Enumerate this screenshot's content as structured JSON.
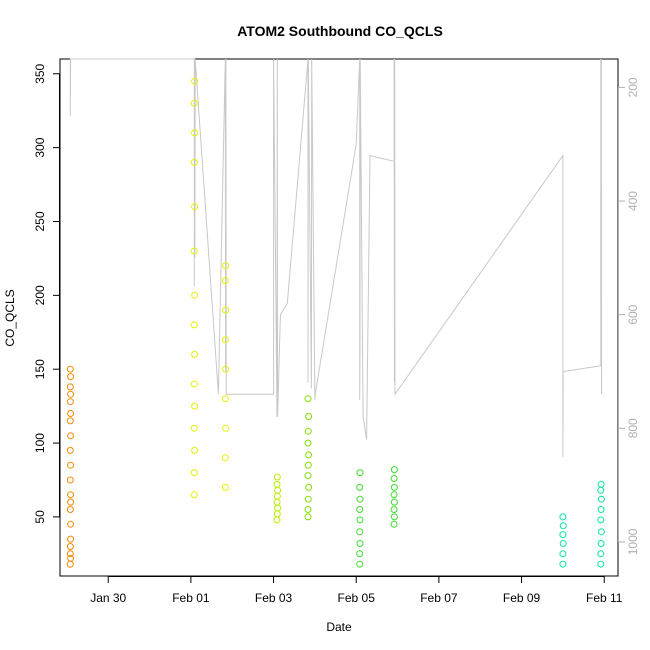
{
  "chart_data": {
    "type": "scatter",
    "title": "ATOM2 Southbound CO_QCLS",
    "xlabel": "Date",
    "ylabel": "CO_QCLS",
    "xlim": [
      "2017-01-28T20:00",
      "2017-02-11T08:00"
    ],
    "ylim": [
      10,
      360
    ],
    "x_ticks": [
      {
        "date": "2017-01-30",
        "label": "Jan 30"
      },
      {
        "date": "2017-02-01",
        "label": "Feb 01"
      },
      {
        "date": "2017-02-03",
        "label": "Feb 03"
      },
      {
        "date": "2017-02-05",
        "label": "Feb 05"
      },
      {
        "date": "2017-02-07",
        "label": "Feb 07"
      },
      {
        "date": "2017-02-09",
        "label": "Feb 09"
      },
      {
        "date": "2017-02-11",
        "label": "Feb 11"
      }
    ],
    "y_ticks": [
      50,
      100,
      150,
      200,
      250,
      300,
      350
    ],
    "y2_ticks": [
      200,
      400,
      600,
      800,
      1000
    ],
    "y2lim": [
      150,
      1060
    ],
    "y2_reversed": true,
    "grid": false,
    "series": [
      {
        "color": "#f58a00",
        "points": [
          [
            "2017-01-29T02:00",
            18
          ],
          [
            "2017-01-29T02:00",
            25
          ],
          [
            "2017-01-29T02:10",
            35
          ],
          [
            "2017-01-29T02:10",
            45
          ],
          [
            "2017-01-29T02:00",
            55
          ],
          [
            "2017-01-29T02:10",
            65
          ],
          [
            "2017-01-29T02:00",
            75
          ],
          [
            "2017-01-29T02:10",
            85
          ],
          [
            "2017-01-29T02:00",
            95
          ],
          [
            "2017-01-29T02:10",
            105
          ],
          [
            "2017-01-29T02:00",
            115
          ],
          [
            "2017-01-29T02:10",
            120
          ],
          [
            "2017-01-29T02:00",
            128
          ],
          [
            "2017-01-29T02:10",
            133
          ],
          [
            "2017-01-29T02:00",
            138
          ],
          [
            "2017-01-29T02:10",
            145
          ],
          [
            "2017-01-29T02:00",
            150
          ],
          [
            "2017-01-29T02:10",
            22
          ],
          [
            "2017-01-29T02:00",
            30
          ],
          [
            "2017-01-29T02:10",
            60
          ]
        ]
      },
      {
        "color": "#e6f000",
        "points": [
          [
            "2017-02-01T02:00",
            65
          ],
          [
            "2017-02-01T02:00",
            80
          ],
          [
            "2017-02-01T02:10",
            95
          ],
          [
            "2017-02-01T02:00",
            110
          ],
          [
            "2017-02-01T02:10",
            125
          ],
          [
            "2017-02-01T02:00",
            140
          ],
          [
            "2017-02-01T02:10",
            160
          ],
          [
            "2017-02-01T02:00",
            180
          ],
          [
            "2017-02-01T02:10",
            200
          ],
          [
            "2017-02-01T02:00",
            230
          ],
          [
            "2017-02-01T02:10",
            260
          ],
          [
            "2017-02-01T02:00",
            290
          ],
          [
            "2017-02-01T02:10",
            310
          ],
          [
            "2017-02-01T02:00",
            330
          ],
          [
            "2017-02-01T02:10",
            345
          ],
          [
            "2017-02-01T20:00",
            70
          ],
          [
            "2017-02-01T20:00",
            90
          ],
          [
            "2017-02-01T20:10",
            110
          ],
          [
            "2017-02-01T20:00",
            130
          ],
          [
            "2017-02-01T20:10",
            150
          ],
          [
            "2017-02-01T20:00",
            170
          ],
          [
            "2017-02-01T20:10",
            190
          ],
          [
            "2017-02-01T20:00",
            210
          ],
          [
            "2017-02-01T20:10",
            220
          ]
        ]
      },
      {
        "color": "#b8ef00",
        "points": [
          [
            "2017-02-03T02:00",
            48
          ],
          [
            "2017-02-03T02:10",
            52
          ],
          [
            "2017-02-03T02:20",
            56
          ],
          [
            "2017-02-03T02:00",
            60
          ],
          [
            "2017-02-03T02:10",
            64
          ],
          [
            "2017-02-03T02:20",
            68
          ],
          [
            "2017-02-03T02:00",
            72
          ],
          [
            "2017-02-03T02:10",
            77
          ]
        ]
      },
      {
        "color": "#7fe000",
        "points": [
          [
            "2017-02-03T20:00",
            50
          ],
          [
            "2017-02-03T20:00",
            55
          ],
          [
            "2017-02-03T20:10",
            62
          ],
          [
            "2017-02-03T20:20",
            70
          ],
          [
            "2017-02-03T20:00",
            78
          ],
          [
            "2017-02-03T20:10",
            85
          ],
          [
            "2017-02-03T20:20",
            92
          ],
          [
            "2017-02-03T20:00",
            100
          ],
          [
            "2017-02-03T20:10",
            108
          ],
          [
            "2017-02-03T20:20",
            118
          ],
          [
            "2017-02-03T20:00",
            130
          ]
        ]
      },
      {
        "color": "#3edc2e",
        "points": [
          [
            "2017-02-05T02:00",
            18
          ],
          [
            "2017-02-05T02:00",
            25
          ],
          [
            "2017-02-05T02:10",
            32
          ],
          [
            "2017-02-05T02:00",
            40
          ],
          [
            "2017-02-05T02:10",
            48
          ],
          [
            "2017-02-05T02:00",
            55
          ],
          [
            "2017-02-05T02:10",
            62
          ],
          [
            "2017-02-05T02:00",
            70
          ],
          [
            "2017-02-05T02:10",
            80
          ],
          [
            "2017-02-05T22:00",
            45
          ],
          [
            "2017-02-05T22:10",
            50
          ],
          [
            "2017-02-05T22:00",
            55
          ],
          [
            "2017-02-05T22:10",
            60
          ],
          [
            "2017-02-05T22:00",
            65
          ],
          [
            "2017-02-05T22:10",
            70
          ],
          [
            "2017-02-05T22:00",
            76
          ],
          [
            "2017-02-05T22:10",
            82
          ]
        ]
      },
      {
        "color": "#08e6a0",
        "points": [
          [
            "2017-02-10T00:00",
            18
          ],
          [
            "2017-02-10T00:00",
            25
          ],
          [
            "2017-02-10T00:10",
            32
          ],
          [
            "2017-02-10T00:00",
            38
          ],
          [
            "2017-02-10T00:10",
            44
          ],
          [
            "2017-02-10T00:00",
            50
          ],
          [
            "2017-02-10T22:00",
            18
          ],
          [
            "2017-02-10T22:00",
            25
          ],
          [
            "2017-02-10T22:10",
            32
          ],
          [
            "2017-02-10T22:20",
            40
          ],
          [
            "2017-02-10T22:00",
            48
          ],
          [
            "2017-02-10T22:10",
            55
          ],
          [
            "2017-02-10T22:20",
            62
          ],
          [
            "2017-02-10T22:00",
            68
          ],
          [
            "2017-02-10T22:10",
            72
          ]
        ]
      }
    ],
    "y2_series": {
      "color": "#c8c8c8",
      "points": [
        [
          "2017-01-29T02:00",
          150
        ],
        [
          "2017-01-29T02:00",
          250
        ],
        [
          "2017-01-29T02:10",
          150
        ],
        [
          "2017-02-01T02:00",
          150
        ],
        [
          "2017-02-01T02:00",
          550
        ],
        [
          "2017-02-01T02:10",
          150
        ],
        [
          "2017-02-01T02:20",
          500
        ],
        [
          "2017-02-01T02:30",
          150
        ],
        [
          "2017-02-01T16:00",
          740
        ],
        [
          "2017-02-01T20:00",
          150
        ],
        [
          "2017-02-01T20:10",
          700
        ],
        [
          "2017-02-01T20:20",
          150
        ],
        [
          "2017-02-01T20:30",
          740
        ],
        [
          "2017-02-03T00:00",
          740
        ],
        [
          "2017-02-03T00:00",
          150
        ],
        [
          "2017-02-03T02:00",
          780
        ],
        [
          "2017-02-03T02:10",
          150
        ],
        [
          "2017-02-03T02:20",
          780
        ],
        [
          "2017-02-03T04:00",
          600
        ],
        [
          "2017-02-03T08:00",
          580
        ],
        [
          "2017-02-03T20:00",
          150
        ],
        [
          "2017-02-03T20:00",
          720
        ],
        [
          "2017-02-03T20:10",
          150
        ],
        [
          "2017-02-03T22:00",
          730
        ],
        [
          "2017-02-03T22:10",
          150
        ],
        [
          "2017-02-04T00:00",
          750
        ],
        [
          "2017-02-04T00:10",
          740
        ],
        [
          "2017-02-05T00:00",
          300
        ],
        [
          "2017-02-05T02:00",
          150
        ],
        [
          "2017-02-05T02:00",
          750
        ],
        [
          "2017-02-05T02:10",
          670
        ],
        [
          "2017-02-05T02:20",
          150
        ],
        [
          "2017-02-05T04:00",
          780
        ],
        [
          "2017-02-05T06:00",
          820
        ],
        [
          "2017-02-05T08:00",
          320
        ],
        [
          "2017-02-05T22:00",
          330
        ],
        [
          "2017-02-05T22:00",
          150
        ],
        [
          "2017-02-05T22:10",
          720
        ],
        [
          "2017-02-05T22:20",
          150
        ],
        [
          "2017-02-05T22:30",
          740
        ],
        [
          "2017-02-10T00:00",
          320
        ],
        [
          "2017-02-10T00:00",
          850
        ],
        [
          "2017-02-10T00:10",
          700
        ],
        [
          "2017-02-10T22:00",
          690
        ],
        [
          "2017-02-10T22:00",
          150
        ],
        [
          "2017-02-10T22:10",
          690
        ],
        [
          "2017-02-10T22:20",
          150
        ],
        [
          "2017-02-10T22:30",
          740
        ]
      ]
    }
  }
}
